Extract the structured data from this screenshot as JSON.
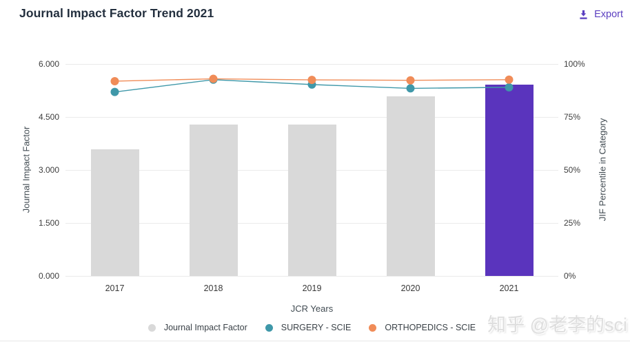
{
  "header": {
    "title": "Journal Impact Factor Trend 2021",
    "export_label": "Export",
    "export_color": "#5b3fc0"
  },
  "watermark": "知乎 @老李的sci",
  "chart_data": {
    "type": "bar+line",
    "title": "Journal Impact Factor Trend 2021",
    "categories": [
      "2017",
      "2018",
      "2019",
      "2020",
      "2021"
    ],
    "bar_series": {
      "name": "Journal Impact Factor",
      "axis": "left",
      "values": [
        3.58,
        4.29,
        4.29,
        5.09,
        5.41
      ],
      "color": "#d9d9d9",
      "highlight_index": 4,
      "highlight_color": "#5a34bd"
    },
    "line_series": [
      {
        "name": "SURGERY - SCIE",
        "axis": "right",
        "values": [
          86.8,
          92.6,
          90.3,
          88.5,
          89.0
        ],
        "color": "#3f98a9"
      },
      {
        "name": "ORTHOPEDICS - SCIE",
        "axis": "right",
        "values": [
          91.9,
          93.0,
          92.5,
          92.3,
          92.6
        ],
        "color": "#f08c58"
      }
    ],
    "xlabel": "JCR Years",
    "ylabel_left": "Journal Impact Factor",
    "ylabel_right": "JIF Percentile in Category",
    "y_left_ticks": [
      "6.000",
      "4.500",
      "3.000",
      "1.500",
      "0.000"
    ],
    "y_right_ticks": [
      "100%",
      "75%",
      "50%",
      "25%",
      "0%"
    ],
    "ylim_left": [
      0,
      6
    ],
    "ylim_right": [
      0,
      100
    ],
    "grid": true,
    "legend_position": "bottom"
  }
}
